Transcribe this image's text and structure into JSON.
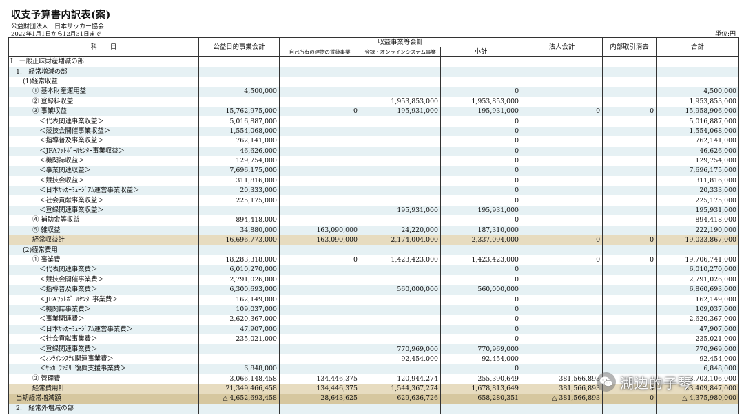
{
  "title": "収支予算書内訳表(案)",
  "organization": "公益財団法人　日本サッカー協会",
  "period": "2022年1月1日から12月31日まで",
  "unit": "単位:円",
  "headers": {
    "item": "科　　目",
    "public_purpose": "公益目的事業会計",
    "revenue_business": "収益事業等会計",
    "rental": "自己所有の建物の賃貸事業",
    "registration": "登録・オンラインシステム事業",
    "subtotal": "小計",
    "corporate": "法人会計",
    "elimination": "内部取引消去",
    "total": "合計"
  },
  "rows": [
    {
      "label": "Ⅰ　一般正味財産増減の部",
      "indent": 0,
      "public": "",
      "rental": "",
      "registration": "",
      "subtotal": "",
      "corporate": "",
      "elimination": "",
      "total": ""
    },
    {
      "label": "1.　経常増減の部",
      "indent": 1,
      "public": "",
      "rental": "",
      "registration": "",
      "subtotal": "",
      "corporate": "",
      "elimination": "",
      "total": ""
    },
    {
      "label": "(1)経常収益",
      "indent": 2,
      "public": "",
      "rental": "",
      "registration": "",
      "subtotal": "",
      "corporate": "",
      "elimination": "",
      "total": ""
    },
    {
      "label": "① 基本財産運用益",
      "indent": 3,
      "public": "4,500,000",
      "rental": "",
      "registration": "",
      "subtotal": "0",
      "corporate": "",
      "elimination": "",
      "total": "4,500,000"
    },
    {
      "label": "② 登録料収益",
      "indent": 3,
      "public": "",
      "rental": "",
      "registration": "1,953,853,000",
      "subtotal": "1,953,853,000",
      "corporate": "",
      "elimination": "",
      "total": "1,953,853,000"
    },
    {
      "label": "③ 事業収益",
      "indent": 3,
      "public": "15,762,975,000",
      "rental": "0",
      "registration": "195,931,000",
      "subtotal": "195,931,000",
      "corporate": "0",
      "elimination": "0",
      "total": "15,958,906,000"
    },
    {
      "label": "＜代表関連事業収益＞",
      "indent": 4,
      "public": "5,016,887,000",
      "rental": "",
      "registration": "",
      "subtotal": "0",
      "corporate": "",
      "elimination": "",
      "total": "5,016,887,000"
    },
    {
      "label": "＜競技会開催事業収益＞",
      "indent": 4,
      "public": "1,554,068,000",
      "rental": "",
      "registration": "",
      "subtotal": "0",
      "corporate": "",
      "elimination": "",
      "total": "1,554,068,000"
    },
    {
      "label": "＜指導普及事業収益＞",
      "indent": 4,
      "public": "762,141,000",
      "rental": "",
      "registration": "",
      "subtotal": "0",
      "corporate": "",
      "elimination": "",
      "total": "762,141,000"
    },
    {
      "label": "＜JFAﾌｯﾄﾎﾞｰﾙｾﾝﾀｰ事業収益＞",
      "indent": 4,
      "public": "46,626,000",
      "rental": "",
      "registration": "",
      "subtotal": "0",
      "corporate": "",
      "elimination": "",
      "total": "46,626,000"
    },
    {
      "label": "＜機関誌収益＞",
      "indent": 4,
      "public": "129,754,000",
      "rental": "",
      "registration": "",
      "subtotal": "0",
      "corporate": "",
      "elimination": "",
      "total": "129,754,000"
    },
    {
      "label": "＜事業関連収益＞",
      "indent": 4,
      "public": "7,696,175,000",
      "rental": "",
      "registration": "",
      "subtotal": "0",
      "corporate": "",
      "elimination": "",
      "total": "7,696,175,000"
    },
    {
      "label": "＜競技会収益＞",
      "indent": 4,
      "public": "311,816,000",
      "rental": "",
      "registration": "",
      "subtotal": "0",
      "corporate": "",
      "elimination": "",
      "total": "311,816,000"
    },
    {
      "label": "＜日本ｻｯｶｰﾐｭｰｼﾞｱﾑ運営事業収益＞",
      "indent": 4,
      "public": "20,333,000",
      "rental": "",
      "registration": "",
      "subtotal": "0",
      "corporate": "",
      "elimination": "",
      "total": "20,333,000"
    },
    {
      "label": "＜社会貢献事業収益＞",
      "indent": 4,
      "public": "225,175,000",
      "rental": "",
      "registration": "",
      "subtotal": "0",
      "corporate": "",
      "elimination": "",
      "total": "225,175,000"
    },
    {
      "label": "＜登録関連事業収益＞",
      "indent": 4,
      "public": "",
      "rental": "",
      "registration": "195,931,000",
      "subtotal": "195,931,000",
      "corporate": "",
      "elimination": "",
      "total": "195,931,000"
    },
    {
      "label": "④ 補助金等収益",
      "indent": 3,
      "public": "894,418,000",
      "rental": "",
      "registration": "",
      "subtotal": "0",
      "corporate": "",
      "elimination": "",
      "total": "894,418,000"
    },
    {
      "label": "⑤ 雑収益",
      "indent": 3,
      "public": "34,880,000",
      "rental": "163,090,000",
      "registration": "24,220,000",
      "subtotal": "187,310,000",
      "corporate": "",
      "elimination": "",
      "total": "222,190,000"
    },
    {
      "label": "経常収益計",
      "indent": 3,
      "kind": "total",
      "public": "16,696,773,000",
      "rental": "163,090,000",
      "registration": "2,174,004,000",
      "subtotal": "2,337,094,000",
      "corporate": "0",
      "elimination": "0",
      "total": "19,033,867,000"
    },
    {
      "label": "(2)経常費用",
      "indent": 2,
      "public": "",
      "rental": "",
      "registration": "",
      "subtotal": "",
      "corporate": "",
      "elimination": "",
      "total": ""
    },
    {
      "label": "① 事業費",
      "indent": 3,
      "public": "18,283,318,000",
      "rental": "0",
      "registration": "1,423,423,000",
      "subtotal": "1,423,423,000",
      "corporate": "0",
      "elimination": "0",
      "total": "19,706,741,000"
    },
    {
      "label": "＜代表関連事業費＞",
      "indent": 4,
      "public": "6,010,270,000",
      "rental": "",
      "registration": "",
      "subtotal": "0",
      "corporate": "",
      "elimination": "",
      "total": "6,010,270,000"
    },
    {
      "label": "＜競技会開催事業費＞",
      "indent": 4,
      "public": "2,791,026,000",
      "rental": "",
      "registration": "",
      "subtotal": "0",
      "corporate": "",
      "elimination": "",
      "total": "2,791,026,000"
    },
    {
      "label": "＜指導普及事業費＞",
      "indent": 4,
      "public": "6,300,693,000",
      "rental": "",
      "registration": "560,000,000",
      "subtotal": "560,000,000",
      "corporate": "",
      "elimination": "",
      "total": "6,860,693,000"
    },
    {
      "label": "＜JFAﾌｯﾄﾎﾞｰﾙｾﾝﾀｰ事業費＞",
      "indent": 4,
      "public": "162,149,000",
      "rental": "",
      "registration": "",
      "subtotal": "0",
      "corporate": "",
      "elimination": "",
      "total": "162,149,000"
    },
    {
      "label": "＜機関誌事業費＞",
      "indent": 4,
      "public": "109,037,000",
      "rental": "",
      "registration": "",
      "subtotal": "0",
      "corporate": "",
      "elimination": "",
      "total": "109,037,000"
    },
    {
      "label": "＜事業関連費＞",
      "indent": 4,
      "public": "2,620,367,000",
      "rental": "",
      "registration": "",
      "subtotal": "0",
      "corporate": "",
      "elimination": "",
      "total": "2,620,367,000"
    },
    {
      "label": "＜日本ｻｯｶｰﾐｭｰｼﾞｱﾑ運営事業費＞",
      "indent": 4,
      "public": "47,907,000",
      "rental": "",
      "registration": "",
      "subtotal": "0",
      "corporate": "",
      "elimination": "",
      "total": "47,907,000"
    },
    {
      "label": "＜社会貢献事業費＞",
      "indent": 4,
      "public": "235,021,000",
      "rental": "",
      "registration": "",
      "subtotal": "0",
      "corporate": "",
      "elimination": "",
      "total": "235,021,000"
    },
    {
      "label": "＜登録関連事業費＞",
      "indent": 4,
      "public": "",
      "rental": "",
      "registration": "770,969,000",
      "subtotal": "770,969,000",
      "corporate": "",
      "elimination": "",
      "total": "770,969,000"
    },
    {
      "label": "＜ｵﾝﾗｲﾝｼｽﾃﾑ関連事業費＞",
      "indent": 4,
      "public": "",
      "rental": "",
      "registration": "92,454,000",
      "subtotal": "92,454,000",
      "corporate": "",
      "elimination": "",
      "total": "92,454,000"
    },
    {
      "label": "＜ｻｯｶｰﾌｧﾐﾘｰ復興支援事業費＞",
      "indent": 4,
      "public": "6,848,000",
      "rental": "",
      "registration": "",
      "subtotal": "0",
      "corporate": "",
      "elimination": "",
      "total": "6,848,000"
    },
    {
      "label": "② 管理費",
      "indent": 3,
      "public": "3,066,148,458",
      "rental": "134,446,375",
      "registration": "120,944,274",
      "subtotal": "255,390,649",
      "corporate": "381,566,893",
      "elimination": "",
      "total": "3,703,106,000"
    },
    {
      "label": "経常費用計",
      "indent": 3,
      "kind": "total",
      "public": "21,349,466,458",
      "rental": "134,446,375",
      "registration": "1,544,367,274",
      "subtotal": "1,678,813,649",
      "corporate": "381,566,893",
      "elimination": "0",
      "total": "23,409,847,000"
    },
    {
      "label": "当期経常増減額",
      "indent": 1,
      "kind": "total2",
      "public": "△ 4,652,693,458",
      "rental": "28,643,625",
      "registration": "629,636,726",
      "subtotal": "658,280,351",
      "corporate": "△ 381,566,893",
      "elimination": "0",
      "total": "△ 4,375,980,000"
    },
    {
      "label": "2.　経常外増減の部",
      "indent": 1,
      "public": "",
      "rental": "",
      "registration": "",
      "subtotal": "",
      "corporate": "",
      "elimination": "",
      "total": ""
    }
  ],
  "watermark": {
    "icon": "wechat-icon",
    "text": "湖边的子琴"
  }
}
